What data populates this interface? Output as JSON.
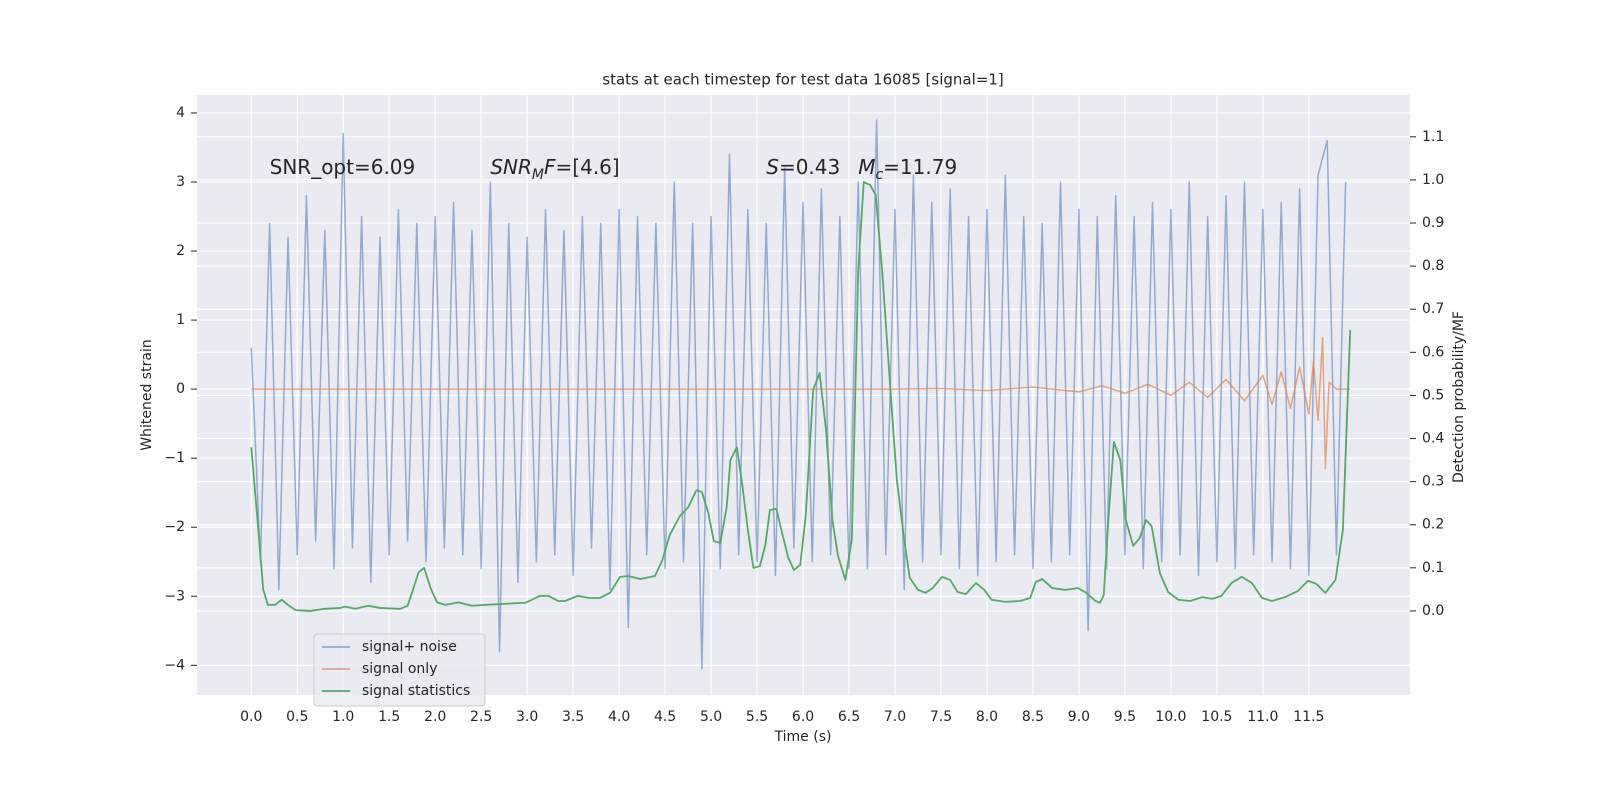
{
  "chart_data": {
    "type": "line",
    "title": "stats at each timestep for test data 16085 [signal=1]",
    "xlabel": "Time (s)",
    "ylabel": "Whitened strain",
    "y2label": "Detection probability/MF",
    "grid": true,
    "legend_loc": "lower left",
    "annotations": [
      {
        "parts": [
          {
            "text": "SNR_opt=6.09"
          }
        ]
      },
      {
        "parts": [
          {
            "text": "SNR",
            "italic": true
          },
          {
            "text": "M",
            "italic": true,
            "sub": true
          },
          {
            "text": "F",
            "italic": true
          },
          {
            "text": "=[4.6]"
          }
        ]
      },
      {
        "parts": [
          {
            "text": "S",
            "italic": true
          },
          {
            "text": "=0.43"
          }
        ]
      },
      {
        "parts": [
          {
            "text": "M",
            "italic": true
          },
          {
            "text": "c",
            "italic": true,
            "sub": true
          },
          {
            "text": "=11.79"
          }
        ]
      }
    ],
    "xlim": [
      -0.59,
      12.6
    ],
    "xticks": [
      {
        "value": 0,
        "label": "0.0"
      },
      0.5,
      {
        "value": 1,
        "label": "1.0"
      },
      1.5,
      {
        "value": 2,
        "label": "2.0"
      },
      2.5,
      {
        "value": 3,
        "label": "3.0"
      },
      3.5,
      {
        "value": 4,
        "label": "4.0"
      },
      4.5,
      {
        "value": 5,
        "label": "5.0"
      },
      5.5,
      {
        "value": 6,
        "label": "6.0"
      },
      6.5,
      {
        "value": 7,
        "label": "7.0"
      },
      7.5,
      {
        "value": 8,
        "label": "8.0"
      },
      8.5,
      {
        "value": 9,
        "label": "9.0"
      },
      9.5,
      {
        "value": 10,
        "label": "10.0"
      },
      10.5,
      {
        "value": 11,
        "label": "11.0"
      },
      11.5
    ],
    "ylim": [
      -4.43,
      4.26
    ],
    "yticks": [
      {
        "value": -4,
        "label": "−4"
      },
      {
        "value": -3,
        "label": "−3"
      },
      {
        "value": -2,
        "label": "−2"
      },
      {
        "value": -1,
        "label": "−1"
      },
      0,
      1,
      2,
      3,
      4
    ],
    "y2lim": [
      -0.195,
      1.197
    ],
    "y2ticks": [
      {
        "value": 0,
        "label": "0.0"
      },
      0.1,
      0.2,
      0.3,
      0.4,
      0.5,
      0.6,
      0.7,
      0.8,
      0.9,
      {
        "value": 1,
        "label": "1.0"
      },
      1.1
    ],
    "series": [
      {
        "name": "signal+ noise",
        "color": "#4c72b0",
        "alpha": 0.55,
        "x": [
          0,
          0.1,
          0.2,
          0.3,
          0.4,
          0.5,
          0.6,
          0.7,
          0.8,
          0.9,
          1,
          1.1,
          1.2,
          1.3,
          1.4,
          1.5,
          1.6,
          1.7,
          1.8,
          1.9,
          2,
          2.1,
          2.2,
          2.3,
          2.4,
          2.5,
          2.6,
          2.7,
          2.8,
          2.9,
          3,
          3.1,
          3.2,
          3.3,
          3.4,
          3.5,
          3.6,
          3.7,
          3.8,
          3.9,
          4,
          4.1,
          4.2,
          4.3,
          4.4,
          4.5,
          4.6,
          4.7,
          4.8,
          4.9,
          5,
          5.1,
          5.2,
          5.3,
          5.4,
          5.5,
          5.6,
          5.7,
          5.8,
          5.9,
          6,
          6.1,
          6.2,
          6.3,
          6.4,
          6.5,
          6.6,
          6.7,
          6.8,
          6.9,
          7,
          7.1,
          7.2,
          7.3,
          7.4,
          7.5,
          7.6,
          7.7,
          7.8,
          7.9,
          8,
          8.1,
          8.2,
          8.3,
          8.4,
          8.5,
          8.6,
          8.7,
          8.8,
          8.9,
          9,
          9.1,
          9.2,
          9.3,
          9.4,
          9.5,
          9.6,
          9.7,
          9.8,
          9.9,
          10,
          10.1,
          10.2,
          10.3,
          10.4,
          10.5,
          10.6,
          10.7,
          10.8,
          10.9,
          11,
          11.1,
          11.2,
          11.3,
          11.4,
          11.5,
          11.6,
          11.7,
          11.8,
          11.9
        ],
        "values": [
          0.6,
          -2.5,
          2.4,
          -2.9,
          2.2,
          -2.4,
          2.8,
          -2.2,
          2.3,
          -2.6,
          3.7,
          -2.3,
          2.5,
          -2.8,
          2.2,
          -2.4,
          2.6,
          -2.2,
          2.4,
          -2.5,
          2.5,
          -2.3,
          2.7,
          -2.4,
          2.3,
          -2.6,
          3.0,
          -3.8,
          2.4,
          -2.8,
          2.2,
          -2.5,
          2.6,
          -2.4,
          2.3,
          -2.7,
          2.5,
          -2.3,
          2.4,
          -2.9,
          2.6,
          -3.45,
          2.5,
          -2.4,
          2.4,
          -2.6,
          3.0,
          -2.5,
          2.4,
          -4.05,
          2.5,
          -2.6,
          3.4,
          -2.4,
          2.6,
          -2.5,
          2.4,
          -2.7,
          3.2,
          -2.3,
          2.7,
          -2.5,
          2.9,
          -2.4,
          2.5,
          -2.6,
          3.0,
          -2.6,
          3.9,
          -2.4,
          2.6,
          -2.9,
          3.1,
          -2.5,
          2.7,
          -2.4,
          2.9,
          -2.6,
          2.5,
          -2.7,
          2.6,
          -2.5,
          3.1,
          -2.4,
          2.5,
          -2.6,
          2.4,
          -2.5,
          3.0,
          -2.4,
          2.6,
          -3.5,
          2.5,
          -2.6,
          2.8,
          -2.4,
          2.5,
          -2.6,
          2.7,
          -2.5,
          2.6,
          -2.4,
          3.0,
          -2.7,
          2.5,
          -2.5,
          2.8,
          -2.6,
          3.0,
          -2.4,
          2.6,
          -2.5,
          2.7,
          -2.6,
          2.9,
          -2.7,
          3.1,
          3.6,
          -2.4,
          3.0
        ]
      },
      {
        "name": "signal only",
        "color": "#dd8452",
        "alpha": 0.7,
        "x": [
          0,
          1,
          2,
          3,
          4,
          5,
          6,
          7,
          7.5,
          8,
          8.5,
          9,
          9.25,
          9.5,
          9.75,
          10,
          10.2,
          10.4,
          10.6,
          10.8,
          11,
          11.1,
          11.2,
          11.3,
          11.4,
          11.5,
          11.55,
          11.6,
          11.65,
          11.68,
          11.72,
          11.8,
          11.95
        ],
        "values": [
          0,
          0,
          0,
          0,
          0,
          0,
          0,
          0,
          0.01,
          -0.02,
          0.03,
          -0.04,
          0.05,
          -0.06,
          0.07,
          -0.09,
          0.1,
          -0.12,
          0.14,
          -0.17,
          0.2,
          -0.22,
          0.25,
          -0.28,
          0.32,
          -0.36,
          0.4,
          -0.45,
          0.75,
          -1.15,
          0.1,
          0,
          0
        ]
      },
      {
        "name": "signal statistics",
        "color": "#55a868",
        "alpha": 1,
        "axis": "y2",
        "x": [
          0,
          0.076,
          0.13,
          0.18,
          0.26,
          0.33,
          0.4,
          0.48,
          0.64,
          0.8,
          0.97,
          1.02,
          1.13,
          1.27,
          1.4,
          1.62,
          1.7,
          1.76,
          1.82,
          1.88,
          1.95,
          2.02,
          2.11,
          2.25,
          2.4,
          2.54,
          2.71,
          2.98,
          3.14,
          3.23,
          3.34,
          3.41,
          3.55,
          3.68,
          3.79,
          3.9,
          4.01,
          4.1,
          4.23,
          4.39,
          4.47,
          4.55,
          4.66,
          4.75,
          4.84,
          4.9,
          4.97,
          5.03,
          5.1,
          5.17,
          5.21,
          5.28,
          5.34,
          5.4,
          5.46,
          5.53,
          5.59,
          5.64,
          5.71,
          5.77,
          5.84,
          5.9,
          5.97,
          6.03,
          6.11,
          6.18,
          6.25,
          6.32,
          6.38,
          6.46,
          6.53,
          6.6,
          6.66,
          6.73,
          6.79,
          6.86,
          6.95,
          7.02,
          7.1,
          7.16,
          7.25,
          7.33,
          7.41,
          7.51,
          7.6,
          7.68,
          7.77,
          7.88,
          7.97,
          8.05,
          8.2,
          8.36,
          8.47,
          8.53,
          8.6,
          8.71,
          8.85,
          8.99,
          9.08,
          9.18,
          9.23,
          9.27,
          9.32,
          9.38,
          9.45,
          9.51,
          9.59,
          9.66,
          9.73,
          9.79,
          9.88,
          9.97,
          10.08,
          10.21,
          10.34,
          10.45,
          10.55,
          10.66,
          10.77,
          10.88,
          10.99,
          11.1,
          11.24,
          11.38,
          11.49,
          11.58,
          11.68,
          11.79,
          11.87,
          11.95
        ],
        "values": [
          0.38,
          0.19,
          0.05,
          0.014,
          0.014,
          0.026,
          0.014,
          0.002,
          0,
          0.005,
          0.007,
          0.01,
          0.005,
          0.012,
          0.007,
          0.005,
          0.012,
          0.05,
          0.09,
          0.1,
          0.053,
          0.02,
          0.014,
          0.02,
          0.012,
          0.014,
          0.016,
          0.019,
          0.035,
          0.035,
          0.023,
          0.023,
          0.035,
          0.03,
          0.03,
          0.042,
          0.079,
          0.081,
          0.074,
          0.081,
          0.118,
          0.176,
          0.22,
          0.24,
          0.28,
          0.276,
          0.227,
          0.162,
          0.158,
          0.241,
          0.35,
          0.38,
          0.292,
          0.188,
          0.1,
          0.104,
          0.153,
          0.234,
          0.237,
          0.183,
          0.123,
          0.095,
          0.107,
          0.223,
          0.513,
          0.552,
          0.42,
          0.21,
          0.128,
          0.072,
          0.165,
          0.79,
          0.995,
          0.988,
          0.965,
          0.79,
          0.513,
          0.304,
          0.165,
          0.077,
          0.049,
          0.042,
          0.053,
          0.079,
          0.072,
          0.044,
          0.039,
          0.065,
          0.049,
          0.026,
          0.021,
          0.023,
          0.03,
          0.067,
          0.074,
          0.053,
          0.049,
          0.053,
          0.042,
          0.023,
          0.019,
          0.037,
          0.211,
          0.392,
          0.35,
          0.211,
          0.151,
          0.169,
          0.211,
          0.197,
          0.088,
          0.044,
          0.026,
          0.023,
          0.032,
          0.028,
          0.035,
          0.065,
          0.079,
          0.065,
          0.03,
          0.023,
          0.032,
          0.046,
          0.07,
          0.063,
          0.042,
          0.072,
          0.188,
          0.652
        ]
      }
    ]
  }
}
